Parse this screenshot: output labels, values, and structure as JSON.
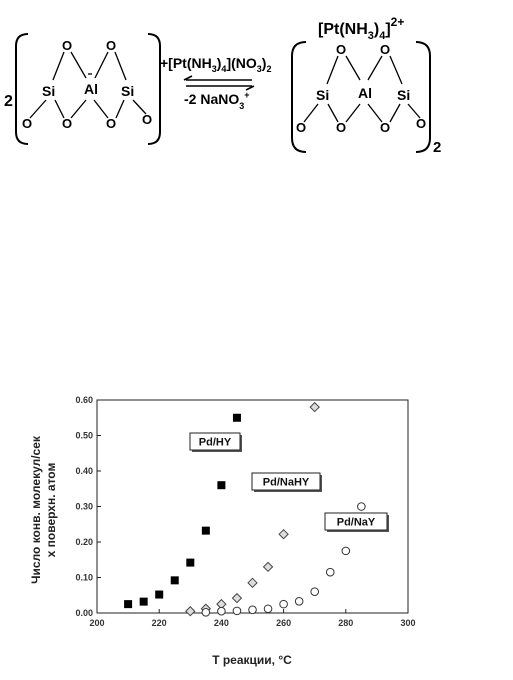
{
  "scheme": {
    "coef_left": "2",
    "coef_right": "2",
    "atoms": {
      "si": "Si",
      "al": "Al",
      "o": "O"
    },
    "reagent_pre": "+[Pt(NH",
    "reagent_sub1": "3",
    "reagent_mid": ")",
    "reagent_sub2": "4",
    "reagent_mid2": "](NO",
    "reagent_sub3": "3",
    "reagent_mid3": ")",
    "reagent_sub4": "2",
    "byproduct_pre": "-2 NaNO",
    "byproduct_sub": "3",
    "byproduct_sup": "+",
    "complex_pre": "[Pt(NH",
    "complex_sub": "3",
    "complex_post": ")",
    "complex_sub2": "4",
    "complex_close": "]",
    "complex_charge": "2+"
  },
  "chart_data": {
    "type": "scatter",
    "xlabel": "T реакции, °C",
    "ylabel_line1": "Число конв. молекул/сек",
    "ylabel_line2": "x поверхн. атом",
    "xlim": [
      200,
      300
    ],
    "ylim": [
      0,
      0.6
    ],
    "x_ticks": [
      "200",
      "220",
      "240",
      "260",
      "280",
      "300"
    ],
    "y_ticks": [
      "0.00",
      "0.10",
      "0.20",
      "0.30",
      "0.40",
      "0.50",
      "0.60"
    ],
    "series": [
      {
        "name": "Pd/HY",
        "marker": "square",
        "points": [
          [
            210,
            0.025
          ],
          [
            215,
            0.032
          ],
          [
            220,
            0.052
          ],
          [
            225,
            0.092
          ],
          [
            230,
            0.142
          ],
          [
            235,
            0.232
          ],
          [
            240,
            0.36
          ],
          [
            245,
            0.55
          ]
        ]
      },
      {
        "name": "Pd/NaHY",
        "marker": "diamond",
        "points": [
          [
            230,
            0.005
          ],
          [
            235,
            0.012
          ],
          [
            240,
            0.025
          ],
          [
            245,
            0.042
          ],
          [
            250,
            0.085
          ],
          [
            255,
            0.13
          ],
          [
            260,
            0.222
          ],
          [
            270,
            0.58
          ]
        ]
      },
      {
        "name": "Pd/NaY",
        "marker": "circle",
        "points": [
          [
            235,
            0.002
          ],
          [
            240,
            0.005
          ],
          [
            245,
            0.006
          ],
          [
            250,
            0.009
          ],
          [
            255,
            0.012
          ],
          [
            260,
            0.025
          ],
          [
            265,
            0.033
          ],
          [
            270,
            0.06
          ],
          [
            275,
            0.115
          ],
          [
            280,
            0.175
          ],
          [
            285,
            0.3
          ]
        ]
      }
    ],
    "labels": [
      "Pd/HY",
      "Pd/NaHY",
      "Pd/NaY"
    ]
  }
}
